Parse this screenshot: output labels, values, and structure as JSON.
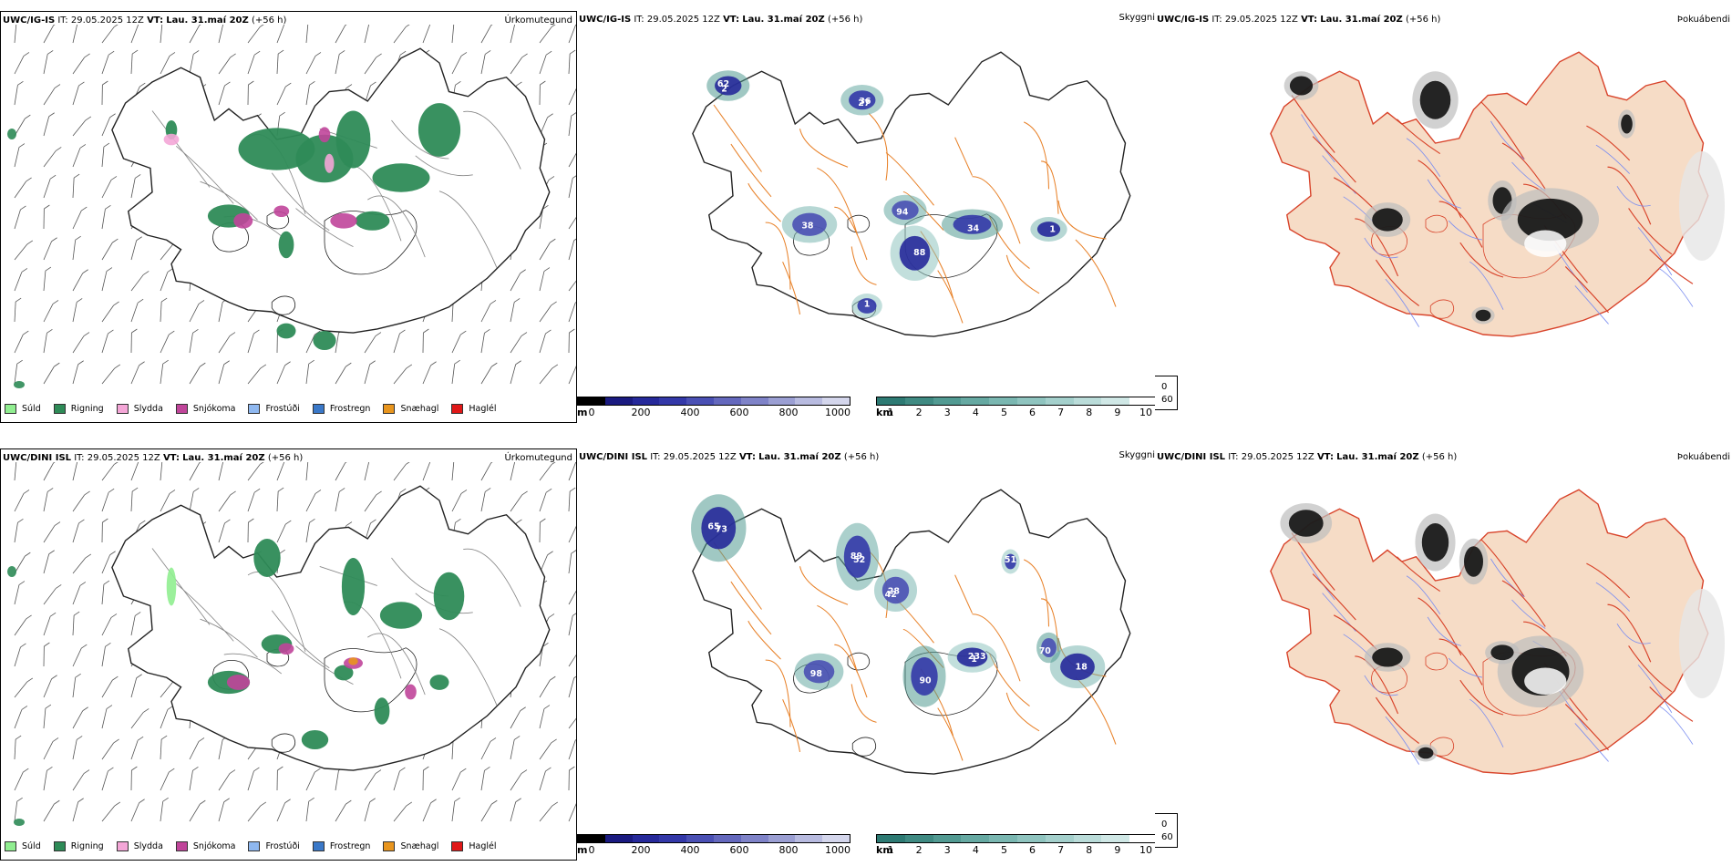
{
  "panels": [
    {
      "model": "UWC/IG-IS",
      "it_label": "IT:",
      "it": "29.05.2025 12Z",
      "vt_label": "VT:",
      "vt": "Lau. 31.maí 20Z",
      "lead": "(+56 h)",
      "tag": "Úrkomutegund"
    },
    {
      "model": "UWC/IG-IS",
      "it_label": "IT:",
      "it": "29.05.2025 12Z",
      "vt_label": "VT:",
      "vt": "Lau. 31.maí 20Z",
      "lead": "(+56 h)",
      "tag": "Skyggni"
    },
    {
      "model": "UWC/IG-IS",
      "it_label": "IT:",
      "it": "29.05.2025 12Z",
      "vt_label": "VT:",
      "vt": "Lau. 31.maí 20Z",
      "lead": "(+56 h)",
      "tag": "Þokuábendi"
    },
    {
      "model": "UWC/DINI ISL",
      "it_label": "IT:",
      "it": "29.05.2025 12Z",
      "vt_label": "VT:",
      "vt": "Lau. 31.maí 20Z",
      "lead": "(+56 h)",
      "tag": "Úrkomutegund"
    },
    {
      "model": "UWC/DINI ISL",
      "it_label": "IT:",
      "it": "29.05.2025 12Z",
      "vt_label": "VT:",
      "vt": "Lau. 31.maí 20Z",
      "lead": "(+56 h)",
      "tag": "Skyggni"
    },
    {
      "model": "UWC/DINI ISL",
      "it_label": "IT:",
      "it": "29.05.2025 12Z",
      "vt_label": "VT:",
      "vt": "Lau. 31.maí 20Z",
      "lead": "(+56 h)",
      "tag": "Þokuábendi"
    }
  ],
  "precip_legend": [
    {
      "label": "Súld",
      "color": "#90ee90"
    },
    {
      "label": "Rigning",
      "color": "#2e8b57"
    },
    {
      "label": "Slydda",
      "color": "#f4a6d7"
    },
    {
      "label": "Snjókoma",
      "color": "#c0459a"
    },
    {
      "label": "Frostúði",
      "color": "#8fb8f0"
    },
    {
      "label": "Frostregn",
      "color": "#3a78c8"
    },
    {
      "label": "Snæhagl",
      "color": "#e8951e"
    },
    {
      "label": "Haglél",
      "color": "#e01818"
    }
  ],
  "visibility": {
    "m_unit": "m",
    "m_ticks": [
      "0",
      "200",
      "400",
      "600",
      "800",
      "1000"
    ],
    "m_colors": [
      "#000000",
      "#1a1a80",
      "#26299a",
      "#3338a8",
      "#4a50b4",
      "#6468bd",
      "#7f83c8",
      "#9b9fd3",
      "#b8bbe0",
      "#d4d6ec"
    ],
    "km_unit": "km",
    "km_ticks": [
      "1",
      "2",
      "3",
      "4",
      "5",
      "6",
      "7",
      "8",
      "9",
      "10"
    ],
    "km_colors": [
      "#2d7a73",
      "#3f8a82",
      "#529a92",
      "#66a9a2",
      "#7ab7b1",
      "#8fc4bf",
      "#a4d0cc",
      "#badcd9",
      "#d0e8e6",
      "#ffffff"
    ]
  },
  "fog_key": {
    "black_label": "0",
    "white_label": "60"
  },
  "ig_labels": [
    "62",
    "27",
    "38",
    "88",
    "34",
    "94",
    "1",
    "1",
    "2",
    "36"
  ],
  "dini_labels": [
    "65",
    "52",
    "28",
    "233",
    "90",
    "98",
    "18",
    "51",
    "70",
    "73",
    "89",
    "42",
    "1"
  ]
}
